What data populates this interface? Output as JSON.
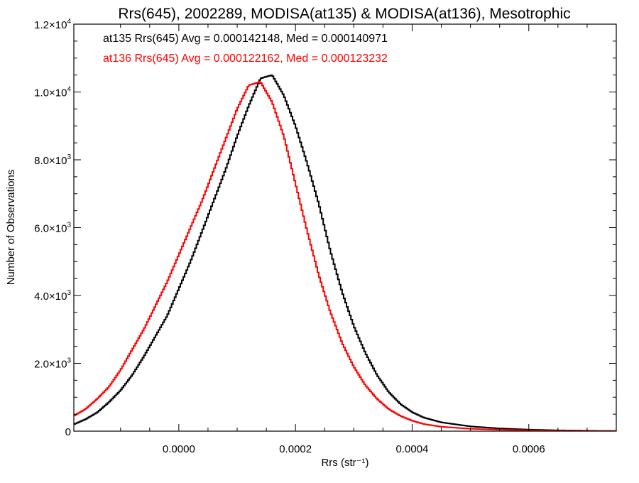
{
  "chart_data": {
    "type": "line",
    "title": "Rrs(645), 2002289, MODISA(at135) & MODISA(at136), Mesotrophic",
    "xlabel": "Rrs (str⁻¹)",
    "ylabel": "Number of Observations",
    "xlim": [
      -0.00018,
      0.00075
    ],
    "ylim": [
      0,
      12000
    ],
    "x_ticks": [
      {
        "value": 0.0,
        "label": "0.0000"
      },
      {
        "value": 0.0002,
        "label": "0.0002"
      },
      {
        "value": 0.0004,
        "label": "0.0004"
      },
      {
        "value": 0.0006,
        "label": "0.0006"
      }
    ],
    "y_ticks": [
      {
        "value": 0,
        "label": "0",
        "exp": ""
      },
      {
        "value": 2000,
        "label": "2.0×10",
        "exp": "3"
      },
      {
        "value": 4000,
        "label": "4.0×10",
        "exp": "3"
      },
      {
        "value": 6000,
        "label": "6.0×10",
        "exp": "3"
      },
      {
        "value": 8000,
        "label": "8.0×10",
        "exp": "3"
      },
      {
        "value": 10000,
        "label": "1.0×10",
        "exp": "4"
      },
      {
        "value": 12000,
        "label": "1.2×10",
        "exp": "4"
      }
    ],
    "grid": false,
    "legend_position": "top-left",
    "series": [
      {
        "name": "at135 Rrs(645) Avg = 0.000142148, Med = 0.000140971",
        "color": "#000000",
        "x": [
          -0.00018,
          -0.00016,
          -0.00014,
          -0.00012,
          -0.0001,
          -8e-05,
          -6e-05,
          -4e-05,
          -2e-05,
          0.0,
          2e-05,
          4e-05,
          6e-05,
          8e-05,
          0.0001,
          0.00012,
          0.00014,
          0.00016,
          0.00018,
          0.0002,
          0.00022,
          0.00024,
          0.00026,
          0.00028,
          0.0003,
          0.00032,
          0.00034,
          0.00036,
          0.00038,
          0.0004,
          0.00042,
          0.00045,
          0.0005,
          0.00055,
          0.0006,
          0.00065,
          0.0007,
          0.00075
        ],
        "values": [
          200,
          350,
          550,
          850,
          1200,
          1650,
          2200,
          2800,
          3400,
          4200,
          5000,
          5900,
          6800,
          7700,
          8700,
          9600,
          10400,
          10500,
          9900,
          9000,
          7900,
          6700,
          5300,
          4100,
          3100,
          2300,
          1650,
          1150,
          800,
          560,
          400,
          260,
          140,
          80,
          45,
          25,
          15,
          5
        ]
      },
      {
        "name": "at136 Rrs(645) Avg = 0.000122162, Med = 0.000123232",
        "color": "#ff0000",
        "x": [
          -0.00018,
          -0.00016,
          -0.00014,
          -0.00012,
          -0.0001,
          -8e-05,
          -6e-05,
          -4e-05,
          -2e-05,
          0.0,
          2e-05,
          4e-05,
          6e-05,
          8e-05,
          0.0001,
          0.00012,
          0.00014,
          0.00016,
          0.00018,
          0.0002,
          0.00022,
          0.00024,
          0.00026,
          0.00028,
          0.0003,
          0.00032,
          0.00034,
          0.00036,
          0.00038,
          0.0004,
          0.00042,
          0.00045,
          0.0005,
          0.00055,
          0.0006,
          0.00065,
          0.0007,
          0.00075
        ],
        "values": [
          450,
          650,
          950,
          1300,
          1800,
          2400,
          3000,
          3700,
          4400,
          5200,
          6000,
          6800,
          7700,
          8600,
          9500,
          10200,
          10300,
          9700,
          8700,
          7300,
          5900,
          4600,
          3500,
          2600,
          1900,
          1350,
          950,
          650,
          450,
          310,
          210,
          130,
          70,
          40,
          25,
          15,
          10,
          5
        ]
      }
    ]
  }
}
